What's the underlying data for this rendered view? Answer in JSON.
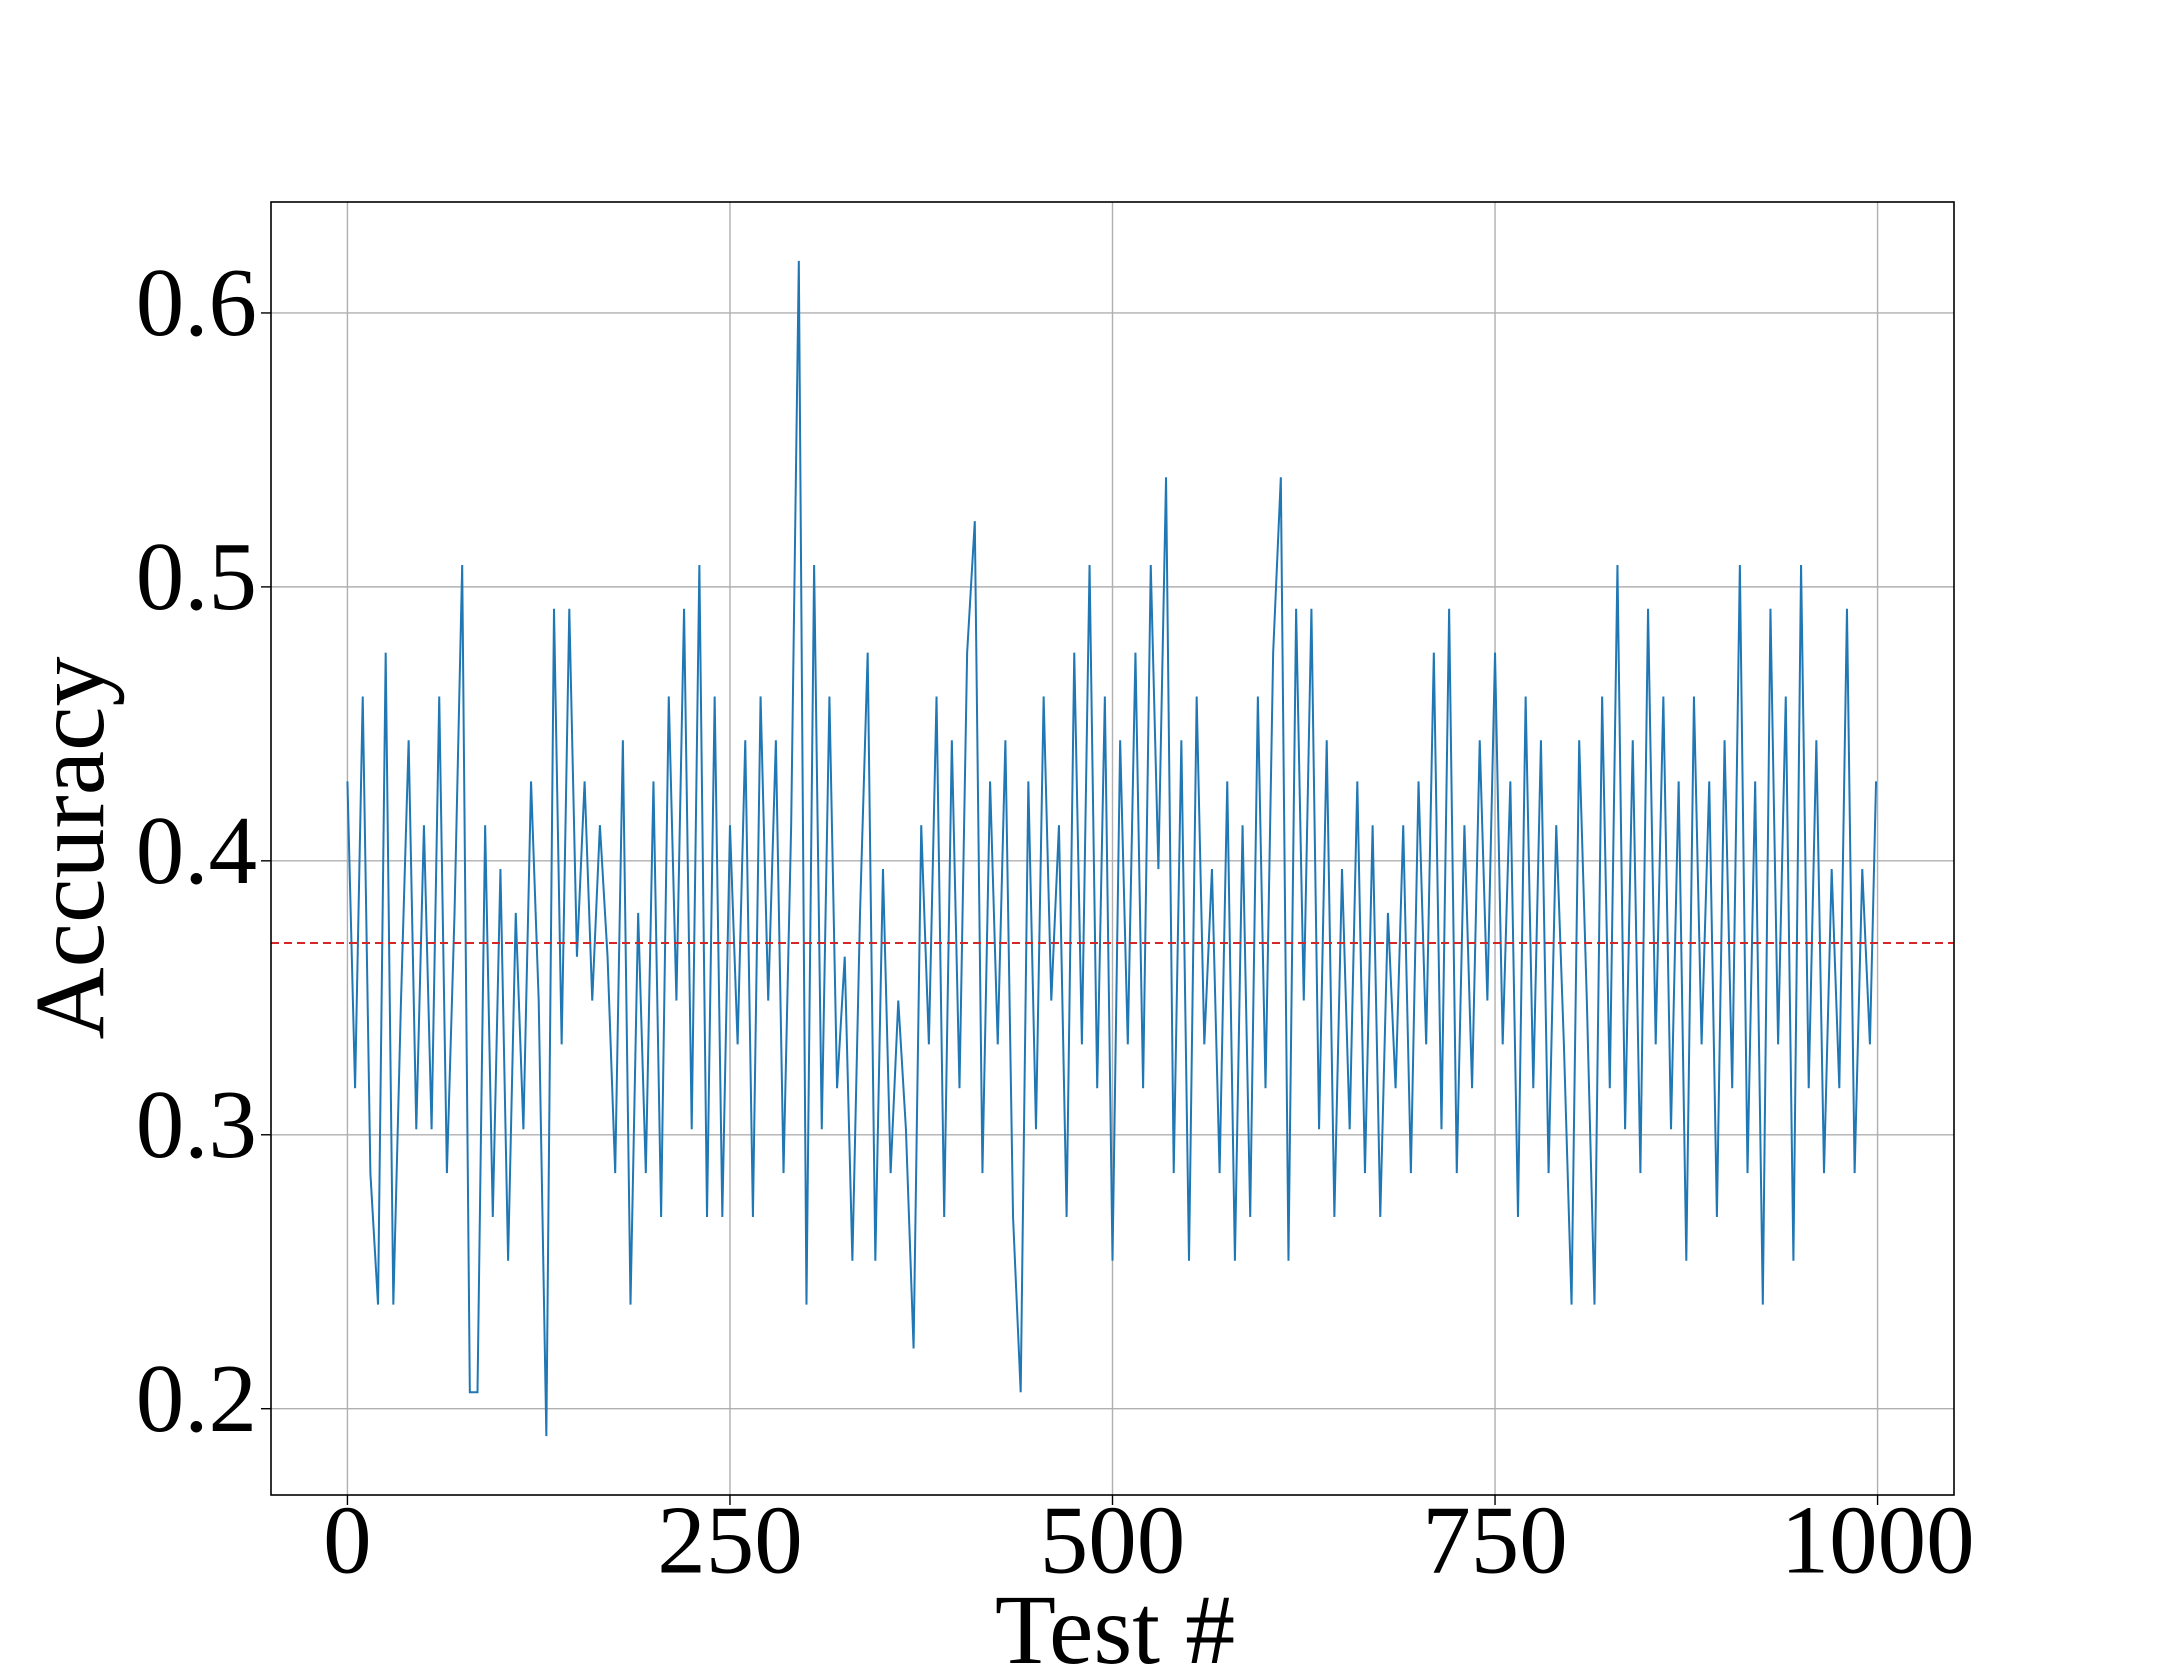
{
  "chart_data": {
    "type": "line",
    "x_label": "Test #",
    "y_label": "Accuracy",
    "x": [
      0,
      5,
      10,
      15,
      20,
      25,
      30,
      35,
      40,
      45,
      50,
      55,
      60,
      65,
      70,
      75,
      80,
      85,
      90,
      95,
      100,
      105,
      110,
      115,
      120,
      125,
      130,
      135,
      140,
      145,
      150,
      155,
      160,
      165,
      170,
      175,
      180,
      185,
      190,
      195,
      200,
      205,
      210,
      215,
      220,
      225,
      230,
      235,
      240,
      245,
      250,
      255,
      260,
      265,
      270,
      275,
      280,
      285,
      290,
      295,
      300,
      305,
      310,
      315,
      320,
      325,
      330,
      335,
      340,
      345,
      350,
      355,
      360,
      365,
      370,
      375,
      380,
      385,
      390,
      395,
      400,
      405,
      410,
      415,
      420,
      425,
      430,
      435,
      440,
      445,
      450,
      455,
      460,
      465,
      470,
      475,
      480,
      485,
      490,
      495,
      500,
      505,
      510,
      515,
      520,
      525,
      530,
      535,
      540,
      545,
      550,
      555,
      560,
      565,
      570,
      575,
      580,
      585,
      590,
      595,
      600,
      605,
      610,
      615,
      620,
      625,
      630,
      635,
      640,
      645,
      650,
      655,
      660,
      665,
      670,
      675,
      680,
      685,
      690,
      695,
      700,
      705,
      710,
      715,
      720,
      725,
      730,
      735,
      740,
      745,
      750,
      755,
      760,
      765,
      770,
      775,
      780,
      785,
      790,
      795,
      800,
      805,
      810,
      815,
      820,
      825,
      830,
      835,
      840,
      845,
      850,
      855,
      860,
      865,
      870,
      875,
      880,
      885,
      890,
      895,
      900,
      905,
      910,
      915,
      920,
      925,
      930,
      935,
      940,
      945,
      950,
      955,
      960,
      965,
      970,
      975,
      980,
      985,
      990,
      995,
      999
    ],
    "values": [
      0.429,
      0.317,
      0.46,
      0.286,
      0.238,
      0.476,
      0.238,
      0.349,
      0.444,
      0.302,
      0.413,
      0.302,
      0.46,
      0.286,
      0.381,
      0.508,
      0.206,
      0.206,
      0.413,
      0.27,
      0.397,
      0.254,
      0.381,
      0.302,
      0.429,
      0.349,
      0.19,
      0.492,
      0.333,
      0.492,
      0.365,
      0.429,
      0.349,
      0.413,
      0.365,
      0.286,
      0.444,
      0.238,
      0.381,
      0.286,
      0.429,
      0.27,
      0.46,
      0.349,
      0.492,
      0.302,
      0.508,
      0.27,
      0.46,
      0.27,
      0.413,
      0.333,
      0.444,
      0.27,
      0.46,
      0.349,
      0.444,
      0.286,
      0.413,
      0.619,
      0.238,
      0.508,
      0.302,
      0.46,
      0.317,
      0.365,
      0.254,
      0.381,
      0.476,
      0.254,
      0.397,
      0.286,
      0.349,
      0.302,
      0.222,
      0.413,
      0.333,
      0.46,
      0.27,
      0.444,
      0.317,
      0.476,
      0.524,
      0.286,
      0.429,
      0.333,
      0.444,
      0.27,
      0.206,
      0.429,
      0.302,
      0.46,
      0.349,
      0.413,
      0.27,
      0.476,
      0.333,
      0.508,
      0.317,
      0.46,
      0.254,
      0.444,
      0.333,
      0.476,
      0.317,
      0.508,
      0.397,
      0.54,
      0.286,
      0.444,
      0.254,
      0.46,
      0.333,
      0.397,
      0.286,
      0.429,
      0.254,
      0.413,
      0.27,
      0.46,
      0.317,
      0.476,
      0.54,
      0.254,
      0.492,
      0.349,
      0.492,
      0.302,
      0.444,
      0.27,
      0.397,
      0.302,
      0.429,
      0.286,
      0.413,
      0.27,
      0.381,
      0.317,
      0.413,
      0.286,
      0.429,
      0.333,
      0.476,
      0.302,
      0.492,
      0.286,
      0.413,
      0.317,
      0.444,
      0.349,
      0.476,
      0.333,
      0.429,
      0.27,
      0.46,
      0.317,
      0.444,
      0.286,
      0.413,
      0.333,
      0.238,
      0.444,
      0.349,
      0.238,
      0.46,
      0.317,
      0.508,
      0.302,
      0.444,
      0.286,
      0.492,
      0.333,
      0.46,
      0.302,
      0.429,
      0.254,
      0.46,
      0.333,
      0.429,
      0.27,
      0.444,
      0.317,
      0.508,
      0.286,
      0.429,
      0.238,
      0.492,
      0.333,
      0.46,
      0.254,
      0.508,
      0.317,
      0.444,
      0.286,
      0.397,
      0.317,
      0.492,
      0.286,
      0.397,
      0.333,
      0.429
    ],
    "color": "#1f77b4",
    "mean_line": {
      "value": 0.37,
      "color": "#d62728"
    },
    "xlim": [
      -49.95,
      1049.95
    ],
    "ylim": [
      0.1685,
      0.6405
    ],
    "xticks": [
      0,
      250,
      500,
      750,
      1000
    ],
    "yticks": [
      0.2,
      0.3,
      0.4,
      0.5,
      0.6
    ],
    "grid": true
  }
}
